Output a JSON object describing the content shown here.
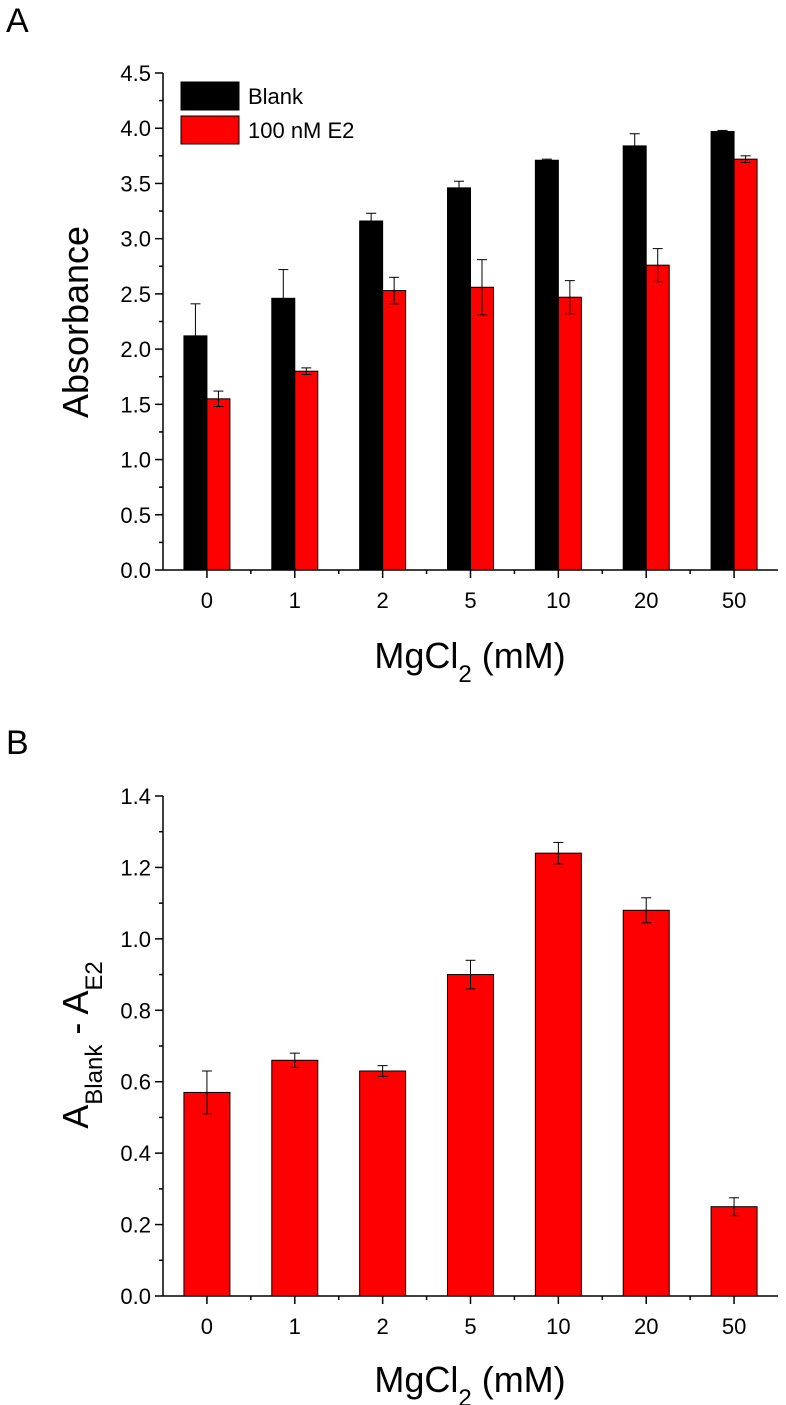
{
  "chart_data": [
    {
      "panel": "A",
      "type": "bar",
      "categories": [
        "0",
        "1",
        "2",
        "5",
        "10",
        "20",
        "50"
      ],
      "series": [
        {
          "name": "Blank",
          "values": [
            2.12,
            2.46,
            3.16,
            3.46,
            3.71,
            3.84,
            3.97
          ],
          "errors": [
            0.29,
            0.26,
            0.07,
            0.06,
            0.01,
            0.11,
            0.01
          ],
          "color": "#000000"
        },
        {
          "name": "100 nM E2",
          "values": [
            1.55,
            1.8,
            2.53,
            2.56,
            2.47,
            2.76,
            3.72
          ],
          "errors": [
            0.07,
            0.03,
            0.12,
            0.25,
            0.15,
            0.15,
            0.03
          ],
          "color": "#ff0000"
        }
      ],
      "ylabel": "Absorbance",
      "xlabel": {
        "main": "MgCl",
        "sub": "2",
        "rest": " (mM)"
      },
      "ylim": [
        0,
        4.5
      ],
      "yticks": [
        "0.0",
        "0.5",
        "1.0",
        "1.5",
        "2.0",
        "2.5",
        "3.0",
        "3.5",
        "4.0",
        "4.5"
      ],
      "legend_position": "top-left"
    },
    {
      "panel": "B",
      "type": "bar",
      "categories": [
        "0",
        "1",
        "2",
        "5",
        "10",
        "20",
        "50"
      ],
      "series": [
        {
          "values": [
            0.57,
            0.66,
            0.63,
            0.9,
            1.24,
            1.08,
            0.25
          ],
          "errors": [
            0.06,
            0.02,
            0.015,
            0.04,
            0.03,
            0.035,
            0.025
          ],
          "color": "#ff0000"
        }
      ],
      "ylabel": {
        "a": "A",
        "sub1": "Blank",
        "mid": " - A",
        "sub2": "E2"
      },
      "xlabel": {
        "main": "MgCl",
        "sub": "2",
        "rest": " (mM)"
      },
      "ylim": [
        0,
        1.4
      ],
      "yticks": [
        "0.0",
        "0.2",
        "0.4",
        "0.6",
        "0.8",
        "1.0",
        "1.2",
        "1.4"
      ]
    }
  ],
  "panels": {
    "a_label": "A",
    "b_label": "B"
  }
}
